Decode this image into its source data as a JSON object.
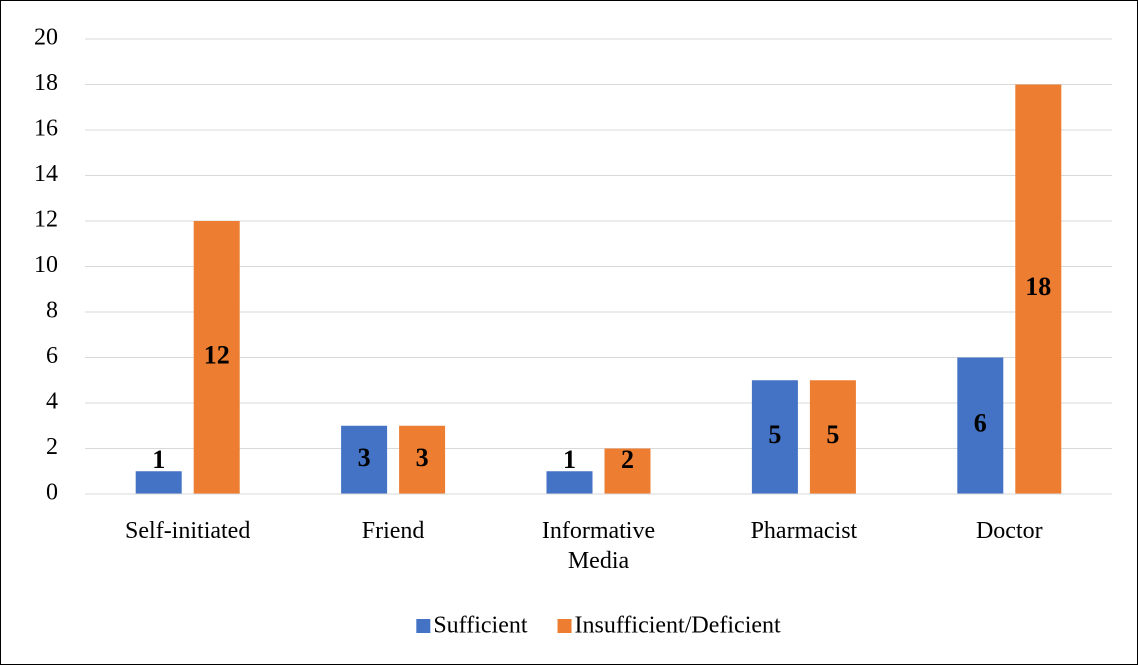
{
  "chart_data": {
    "type": "bar",
    "categories": [
      "Self-initiated",
      "Friend",
      "Informative Media",
      "Pharmacist",
      "Doctor"
    ],
    "series": [
      {
        "name": "Sufficient",
        "color": "#4472c4",
        "values": [
          1,
          3,
          1,
          5,
          6
        ]
      },
      {
        "name": "Insufficient/Deficient",
        "color": "#ed7d31",
        "values": [
          12,
          3,
          2,
          5,
          18
        ]
      }
    ],
    "ylim": [
      0,
      20
    ],
    "yticks": [
      0,
      2,
      4,
      6,
      8,
      10,
      12,
      14,
      16,
      18,
      20
    ],
    "grid": true,
    "legend": "bottom"
  }
}
